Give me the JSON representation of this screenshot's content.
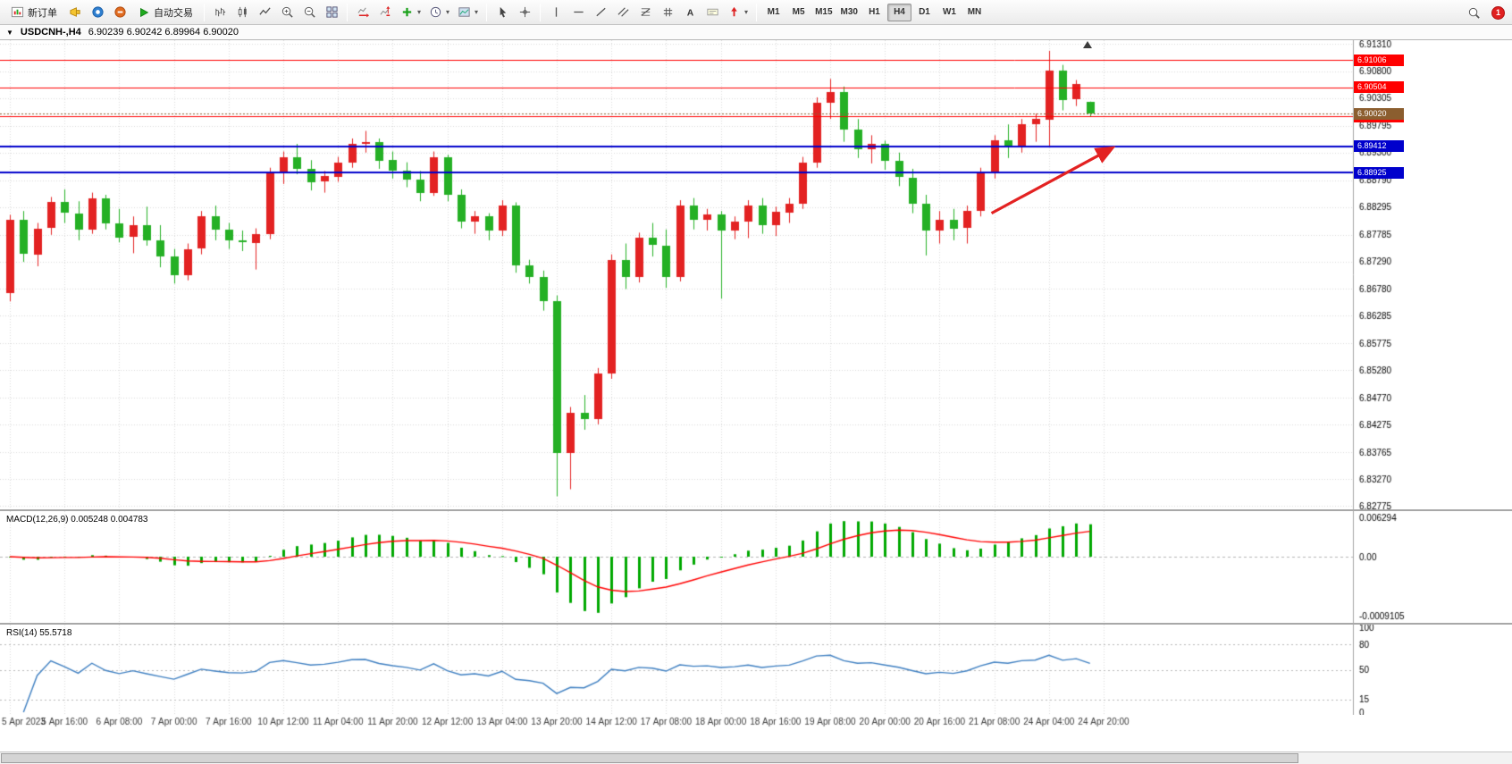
{
  "glyphs": {
    "dropdown_caret": "▾",
    "title_caret": "▼",
    "shift_marker": "▲"
  },
  "toolbar": {
    "new_order_label": "新订单",
    "autotrading_label": "自动交易",
    "timeframes": [
      "M1",
      "M5",
      "M15",
      "M30",
      "H1",
      "H4",
      "D1",
      "W1",
      "MN"
    ],
    "active_timeframe": "H4",
    "notification_badge": "1"
  },
  "title_bar": {
    "symbol_period": "USDCNH-,H4",
    "ohlc_values": "6.90239 6.90242 6.89964 6.90020"
  },
  "chart_data": {
    "type": "candlestick",
    "symbol": "USDCNH-",
    "timeframe": "H4",
    "ylim": [
      6.82775,
      6.9131
    ],
    "y_tick_labels": [
      "6.91310",
      "6.90800",
      "6.90305",
      "6.89795",
      "6.89300",
      "6.88790",
      "6.88295",
      "6.87785",
      "6.87290",
      "6.86780",
      "6.86285",
      "6.85775",
      "6.85280",
      "6.84770",
      "6.84275",
      "6.83765",
      "6.83270",
      "6.82775"
    ],
    "x_tick_labels": [
      "5 Apr 2023",
      "5 Apr 16:00",
      "6 Apr 08:00",
      "7 Apr 00:00",
      "7 Apr 16:00",
      "10 Apr 12:00",
      "11 Apr 04:00",
      "11 Apr 20:00",
      "12 Apr 12:00",
      "13 Apr 04:00",
      "13 Apr 20:00",
      "14 Apr 12:00",
      "17 Apr 08:00",
      "18 Apr 00:00",
      "18 Apr 16:00",
      "19 Apr 08:00",
      "20 Apr 00:00",
      "20 Apr 16:00",
      "21 Apr 08:00",
      "24 Apr 04:00",
      "24 Apr 20:00"
    ],
    "x_tick_step": 4,
    "colors": {
      "up": "#e32222",
      "down": "#25b025",
      "grid": "#d9d9d9",
      "hline_red": "#ff0000",
      "hline_blue": "#0000cc",
      "current_price_tag": "#8b5e2f",
      "macd_histogram": "#00a800",
      "macd_signal": "#ff0000",
      "rsi_line": "#3e7fc1",
      "annotation": "#e32222"
    },
    "ohlc": [
      [
        6.867,
        6.8815,
        6.8655,
        6.8805
      ],
      [
        6.8805,
        6.8822,
        6.8728,
        6.8742
      ],
      [
        6.8742,
        6.88,
        6.872,
        6.879
      ],
      [
        6.879,
        6.8848,
        6.8778,
        6.8838
      ],
      [
        6.8838,
        6.8862,
        6.88,
        6.8818
      ],
      [
        6.8818,
        6.884,
        6.8768,
        6.8788
      ],
      [
        6.8788,
        6.8856,
        6.878,
        6.8846
      ],
      [
        6.8846,
        6.8852,
        6.8788,
        6.88
      ],
      [
        6.88,
        6.8826,
        6.8764,
        6.8774
      ],
      [
        6.8774,
        6.8812,
        6.8744,
        6.8796
      ],
      [
        6.8796,
        6.883,
        6.8758,
        6.8768
      ],
      [
        6.8768,
        6.8796,
        6.8718,
        6.8738
      ],
      [
        6.8738,
        6.8752,
        6.8688,
        6.8704
      ],
      [
        6.8704,
        6.8762,
        6.8694,
        6.8752
      ],
      [
        6.8752,
        6.8822,
        6.8742,
        6.8812
      ],
      [
        6.8812,
        6.8832,
        6.8768,
        6.8788
      ],
      [
        6.8788,
        6.88,
        6.8752,
        6.8768
      ],
      [
        6.8768,
        6.8786,
        6.8748,
        6.8764
      ],
      [
        6.8764,
        6.879,
        6.8714,
        6.878
      ],
      [
        6.878,
        6.8902,
        6.877,
        6.8892
      ],
      [
        6.8892,
        6.8932,
        6.8872,
        6.8922
      ],
      [
        6.8922,
        6.8946,
        6.889,
        6.89
      ],
      [
        6.89,
        6.8916,
        6.886,
        6.8876
      ],
      [
        6.8876,
        6.8896,
        6.8856,
        6.8886
      ],
      [
        6.8886,
        6.8922,
        6.8876,
        6.8912
      ],
      [
        6.8912,
        6.8956,
        6.8902,
        6.8946
      ],
      [
        6.8946,
        6.897,
        6.893,
        6.895
      ],
      [
        6.895,
        6.8956,
        6.89,
        6.8916
      ],
      [
        6.8916,
        6.8932,
        6.8882,
        6.8896
      ],
      [
        6.8896,
        6.8912,
        6.8866,
        6.888
      ],
      [
        6.888,
        6.8896,
        6.884,
        6.8856
      ],
      [
        6.8856,
        6.8932,
        6.885,
        6.8922
      ],
      [
        6.8922,
        6.8926,
        6.884,
        6.8852
      ],
      [
        6.8852,
        6.8862,
        6.879,
        6.8802
      ],
      [
        6.8802,
        6.8822,
        6.878,
        6.8812
      ],
      [
        6.8812,
        6.8818,
        6.8768,
        6.8786
      ],
      [
        6.8786,
        6.8842,
        6.8776,
        6.8832
      ],
      [
        6.8832,
        6.8838,
        6.8708,
        6.8722
      ],
      [
        6.8722,
        6.8732,
        6.8688,
        6.87
      ],
      [
        6.87,
        6.8712,
        6.8638,
        6.8656
      ],
      [
        6.8656,
        6.8666,
        6.8295,
        6.8376
      ],
      [
        6.8376,
        6.846,
        6.8308,
        6.845
      ],
      [
        6.845,
        6.8482,
        6.8418,
        6.8438
      ],
      [
        6.8438,
        6.8532,
        6.8428,
        6.8522
      ],
      [
        6.8522,
        6.8742,
        6.8512,
        6.8732
      ],
      [
        6.8732,
        6.8762,
        6.8678,
        6.87
      ],
      [
        6.87,
        6.8782,
        6.869,
        6.8772
      ],
      [
        6.8772,
        6.88,
        6.8738,
        6.8758
      ],
      [
        6.8758,
        6.8788,
        6.868,
        6.87
      ],
      [
        6.87,
        6.8842,
        6.8692,
        6.8832
      ],
      [
        6.8832,
        6.8846,
        6.8788,
        6.8806
      ],
      [
        6.8806,
        6.8826,
        6.8786,
        6.8816
      ],
      [
        6.8816,
        6.8822,
        6.866,
        6.8786
      ],
      [
        6.8786,
        6.8812,
        6.877,
        6.8802
      ],
      [
        6.8802,
        6.8842,
        6.8772,
        6.8832
      ],
      [
        6.8832,
        6.8846,
        6.878,
        6.8796
      ],
      [
        6.8796,
        6.883,
        6.8776,
        6.882
      ],
      [
        6.882,
        6.8846,
        6.88,
        6.8836
      ],
      [
        6.8836,
        6.8922,
        6.8826,
        6.8912
      ],
      [
        6.8912,
        6.9032,
        6.8902,
        6.9022
      ],
      [
        6.9022,
        6.9066,
        6.8992,
        6.9042
      ],
      [
        6.9042,
        6.9052,
        6.895,
        6.8972
      ],
      [
        6.8972,
        6.8992,
        6.892,
        6.8936
      ],
      [
        6.8936,
        6.8962,
        6.891,
        6.8946
      ],
      [
        6.8946,
        6.8952,
        6.8898,
        6.8914
      ],
      [
        6.8914,
        6.893,
        6.8868,
        6.8884
      ],
      [
        6.8884,
        6.89,
        6.8818,
        6.8836
      ],
      [
        6.8836,
        6.8852,
        6.874,
        6.8786
      ],
      [
        6.8786,
        6.8822,
        6.8762,
        6.8806
      ],
      [
        6.8806,
        6.8826,
        6.8768,
        6.879
      ],
      [
        6.879,
        6.8832,
        6.8762,
        6.8822
      ],
      [
        6.8822,
        6.8902,
        6.8812,
        6.8892
      ],
      [
        6.8892,
        6.8962,
        6.8882,
        6.8952
      ],
      [
        6.8952,
        6.8982,
        6.892,
        6.894
      ],
      [
        6.894,
        6.8992,
        6.893,
        6.8982
      ],
      [
        6.8982,
        6.9002,
        6.895,
        6.8992
      ],
      [
        6.8992,
        6.9118,
        6.8942,
        6.9082
      ],
      [
        6.9082,
        6.9092,
        6.9008,
        6.9028
      ],
      [
        6.9028,
        6.9064,
        6.9016,
        6.9056
      ],
      [
        6.90239,
        6.90242,
        6.89964,
        6.9002
      ]
    ],
    "hlines": [
      {
        "price": 6.91006,
        "label": "6.91006",
        "color": "#ff0000",
        "width": 1
      },
      {
        "price": 6.90504,
        "label": "6.90504",
        "color": "#ff0000",
        "width": 1
      },
      {
        "price": 6.89965,
        "label": "6.89965",
        "color": "#ff0000",
        "width": 1
      },
      {
        "price": 6.89412,
        "label": "6.89412",
        "color": "#0000cc",
        "width": 2
      },
      {
        "price": 6.88925,
        "label": "6.88925",
        "color": "#0000cc",
        "width": 2
      }
    ],
    "current_price": {
      "price": 6.9002,
      "label": "6.90020"
    },
    "indicators": {
      "macd": {
        "label_full": "MACD(12,26,9) 0.005248 0.004783",
        "name": "MACD",
        "params": [
          12,
          26,
          9
        ],
        "main_value": 0.005248,
        "signal_value": 0.004783,
        "axis_labels": [
          "0.006294",
          "0.00",
          "-0.0009105"
        ]
      },
      "rsi": {
        "label_full": "RSI(14) 55.5718",
        "name": "RSI",
        "period": 14,
        "value": 55.5718,
        "levels": [
          80,
          50,
          15
        ],
        "axis_labels": [
          "100",
          "80",
          "50",
          "15",
          "0"
        ]
      }
    },
    "annotations": [
      {
        "type": "arrow",
        "color": "#e32222",
        "from_bar": 71.8,
        "from_price": 6.8818,
        "to_bar": 80.6,
        "to_price": 6.8938
      }
    ]
  }
}
